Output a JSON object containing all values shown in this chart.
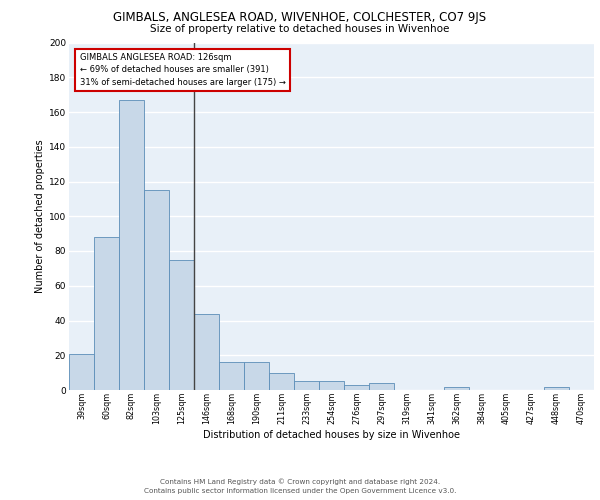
{
  "title": "GIMBALS, ANGLESEA ROAD, WIVENHOE, COLCHESTER, CO7 9JS",
  "subtitle": "Size of property relative to detached houses in Wivenhoe",
  "xlabel": "Distribution of detached houses by size in Wivenhoe",
  "ylabel": "Number of detached properties",
  "categories": [
    "39sqm",
    "60sqm",
    "82sqm",
    "103sqm",
    "125sqm",
    "146sqm",
    "168sqm",
    "190sqm",
    "211sqm",
    "233sqm",
    "254sqm",
    "276sqm",
    "297sqm",
    "319sqm",
    "341sqm",
    "362sqm",
    "384sqm",
    "405sqm",
    "427sqm",
    "448sqm",
    "470sqm"
  ],
  "values": [
    21,
    88,
    167,
    115,
    75,
    44,
    16,
    16,
    10,
    5,
    5,
    3,
    4,
    0,
    0,
    2,
    0,
    0,
    0,
    2,
    0
  ],
  "bar_color": "#c8d8e8",
  "bar_edge_color": "#5b8db8",
  "background_color": "#e8f0f8",
  "grid_color": "#ffffff",
  "annotation_text_line1": "GIMBALS ANGLESEA ROAD: 126sqm",
  "annotation_text_line2": "← 69% of detached houses are smaller (391)",
  "annotation_text_line3": "31% of semi-detached houses are larger (175) →",
  "annotation_box_color": "#ffffff",
  "annotation_box_edge_color": "#cc0000",
  "vline_color": "#444444",
  "vline_x": 4.5,
  "ylim": [
    0,
    200
  ],
  "yticks": [
    0,
    20,
    40,
    60,
    80,
    100,
    120,
    140,
    160,
    180,
    200
  ],
  "footer_line1": "Contains HM Land Registry data © Crown copyright and database right 2024.",
  "footer_line2": "Contains public sector information licensed under the Open Government Licence v3.0."
}
